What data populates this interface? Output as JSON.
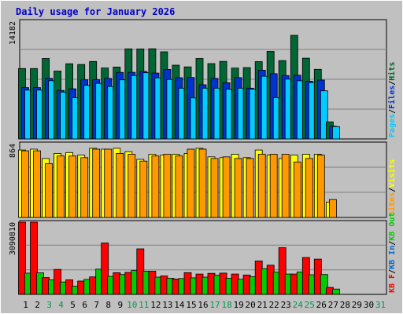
{
  "chart_data": [
    {
      "type": "bar",
      "title": "Daily usage for January 2026",
      "categories": [
        "1",
        "2",
        "3",
        "4",
        "5",
        "6",
        "7",
        "8",
        "9",
        "10",
        "11",
        "12",
        "13",
        "14",
        "15",
        "16",
        "17",
        "18",
        "19",
        "20",
        "21",
        "22",
        "23",
        "24",
        "25",
        "26",
        "27",
        "28",
        "29",
        "30",
        "31"
      ],
      "weekend_categories": [
        "3",
        "4",
        "10",
        "11",
        "17",
        "18",
        "24",
        "25",
        "31"
      ],
      "series": [
        {
          "name": "Hits",
          "color": "#006633",
          "values": [
            8480,
            8480,
            9690,
            8180,
            9060,
            8970,
            9330,
            8550,
            8660,
            10850,
            10840,
            10860,
            10490,
            8890,
            8680,
            9690,
            9080,
            9340,
            8540,
            8590,
            9310,
            10540,
            9440,
            12480,
            9730,
            8390,
            2060,
            0,
            0,
            0,
            0
          ]
        },
        {
          "name": "Files",
          "color": "#0033cc",
          "values": [
            6180,
            6180,
            7300,
            5840,
            6040,
            7120,
            7130,
            7300,
            8020,
            8030,
            8130,
            7930,
            8380,
            7370,
            7400,
            6520,
            7300,
            6770,
            7380,
            6120,
            8280,
            7860,
            7630,
            7680,
            6960,
            7090,
            1540,
            0,
            0,
            0,
            0
          ]
        },
        {
          "name": "Pages",
          "color": "#00ccff",
          "values": [
            5880,
            5880,
            7020,
            5640,
            4960,
            6460,
            6690,
            6320,
            7120,
            7630,
            7970,
            7360,
            7170,
            6120,
            4940,
            6120,
            6120,
            5990,
            6120,
            5990,
            7550,
            4960,
            7200,
            7010,
            6790,
            5800,
            1480,
            0,
            0,
            0,
            0
          ]
        }
      ],
      "ylim": [
        0,
        14182
      ],
      "ytick": "14182",
      "legend": [
        "Pages",
        "Files",
        "Hits"
      ]
    },
    {
      "type": "bar",
      "categories": [
        "1",
        "2",
        "3",
        "4",
        "5",
        "6",
        "7",
        "8",
        "9",
        "10",
        "11",
        "12",
        "13",
        "14",
        "15",
        "16",
        "17",
        "18",
        "19",
        "20",
        "21",
        "22",
        "23",
        "24",
        "25",
        "26",
        "27",
        "28",
        "29",
        "30",
        "31"
      ],
      "series": [
        {
          "name": "Visits",
          "color": "#ffff00",
          "values": [
            790,
            800,
            690,
            750,
            760,
            730,
            810,
            800,
            810,
            770,
            680,
            740,
            730,
            740,
            750,
            810,
            710,
            700,
            740,
            700,
            790,
            730,
            690,
            730,
            740,
            740,
            180,
            0,
            0,
            0,
            0
          ]
        },
        {
          "name": "Sites",
          "color": "#ff9900",
          "values": [
            780,
            780,
            630,
            720,
            720,
            700,
            800,
            800,
            750,
            740,
            660,
            720,
            740,
            720,
            800,
            800,
            690,
            710,
            690,
            690,
            740,
            740,
            740,
            650,
            690,
            730,
            210,
            0,
            0,
            0,
            0
          ]
        }
      ],
      "ylim": [
        0,
        864
      ],
      "ytick": "864",
      "legend": [
        "Sites",
        "Visits"
      ]
    },
    {
      "type": "bar",
      "categories": [
        "1",
        "2",
        "3",
        "4",
        "5",
        "6",
        "7",
        "8",
        "9",
        "10",
        "11",
        "12",
        "13",
        "14",
        "15",
        "16",
        "17",
        "18",
        "19",
        "20",
        "21",
        "22",
        "23",
        "24",
        "25",
        "26",
        "27",
        "28",
        "29",
        "30",
        "31"
      ],
      "series": [
        {
          "name": "KB F",
          "color": "#ff0000",
          "values": [
            3090810,
            3090810,
            720000,
            1070000,
            620000,
            570000,
            750000,
            2200000,
            930000,
            940000,
            1950000,
            990000,
            790000,
            660000,
            930000,
            870000,
            900000,
            910000,
            870000,
            830000,
            1430000,
            1250000,
            2000000,
            870000,
            1580000,
            1510000,
            300000,
            0,
            0,
            0,
            0
          ]
        },
        {
          "name": "KB In",
          "color": "#0066cc",
          "values": [
            0,
            0,
            0,
            0,
            0,
            0,
            0,
            0,
            0,
            0,
            0,
            0,
            0,
            0,
            0,
            0,
            0,
            0,
            0,
            0,
            0,
            0,
            0,
            0,
            0,
            0,
            0,
            0,
            0,
            0,
            0
          ]
        },
        {
          "name": "KB Out",
          "color": "#00cc00",
          "values": [
            910000,
            920000,
            620000,
            530000,
            350000,
            640000,
            1080000,
            770000,
            850000,
            1020000,
            990000,
            740000,
            690000,
            680000,
            710000,
            740000,
            820000,
            690000,
            650000,
            760000,
            1100000,
            950000,
            870000,
            960000,
            840000,
            850000,
            230000,
            0,
            0,
            0,
            0
          ]
        }
      ],
      "ylim": [
        0,
        3090810
      ],
      "ytick": "3090810",
      "legend": [
        "KB F",
        "KB In",
        "KB Out"
      ]
    }
  ],
  "legend_separator": "/",
  "colors": {
    "page_bg": "#c0c0c0",
    "plot_bg": "#c0c0c0",
    "grid": "#808080",
    "title": "#0000cc",
    "label_text": "#000000",
    "weekend_label": "#00994c"
  }
}
